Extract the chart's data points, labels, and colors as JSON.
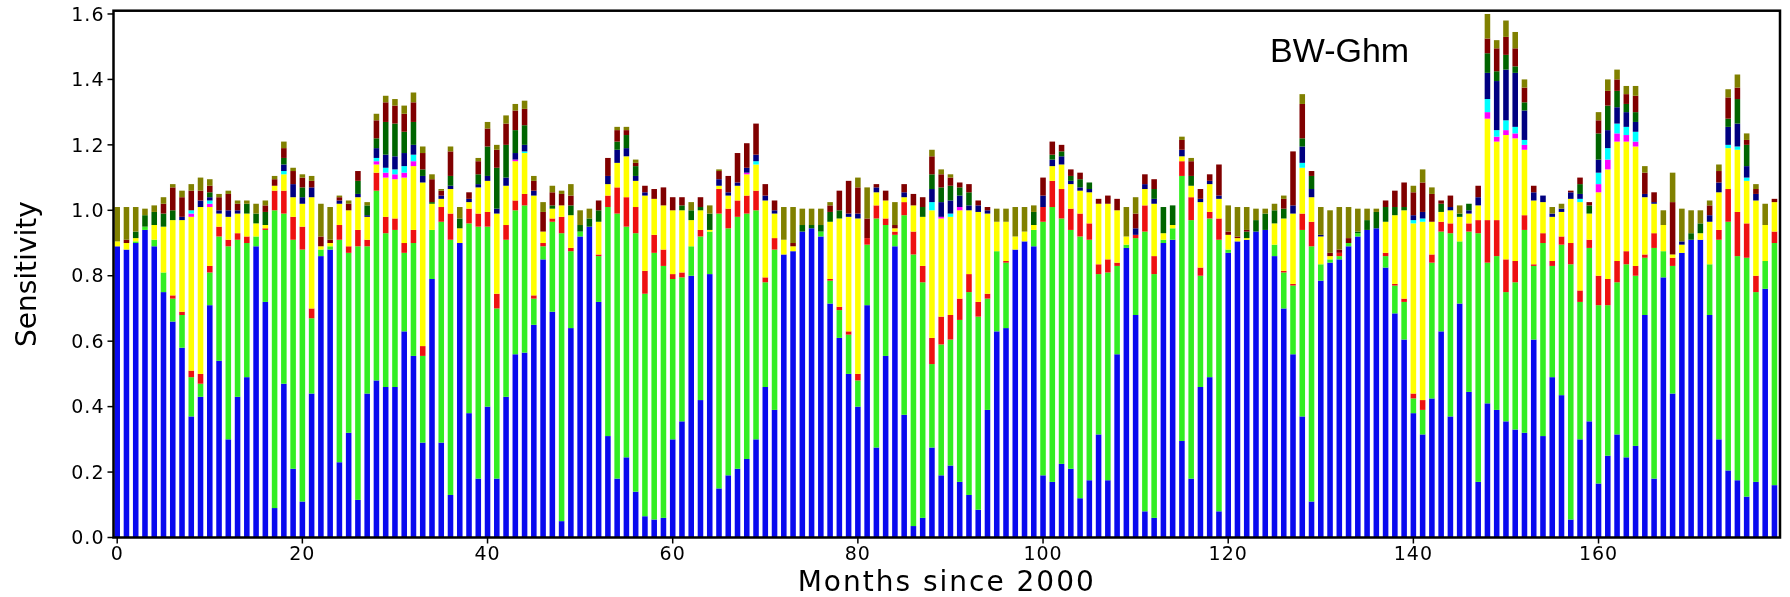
{
  "chart_data": {
    "type": "bar",
    "stacked": true,
    "xlabel": "Months since 2000",
    "ylabel": "Sensitivity",
    "annotations": [
      "BW-Ghm"
    ],
    "xlim": [
      -0.4,
      179.6
    ],
    "ylim": [
      0,
      1.61
    ],
    "xticks": [
      0,
      20,
      40,
      60,
      80,
      100,
      120,
      140,
      160
    ],
    "yticks": [
      {
        "value": 0,
        "label": "0.0"
      },
      {
        "value": 0.2,
        "label": "0.2"
      },
      {
        "value": 0.4,
        "label": "0.4"
      },
      {
        "value": 0.6,
        "label": "0.6"
      },
      {
        "value": 0.8,
        "label": "0.8"
      },
      {
        "value": 1.0,
        "label": "1.0"
      },
      {
        "value": 1.2,
        "label": "1.2"
      },
      {
        "value": 1.4,
        "label": "1.4"
      },
      {
        "value": 1.6,
        "label": "1.6"
      }
    ],
    "x": [
      0,
      1,
      2,
      3,
      4,
      5,
      6,
      7,
      8,
      9,
      10,
      11,
      12,
      13,
      14,
      15,
      16,
      17,
      18,
      19,
      20,
      21,
      22,
      23,
      24,
      25,
      26,
      27,
      28,
      29,
      30,
      31,
      32,
      33,
      34,
      35,
      36,
      37,
      38,
      39,
      40,
      41,
      42,
      43,
      44,
      45,
      46,
      47,
      48,
      49,
      50,
      51,
      52,
      53,
      54,
      55,
      56,
      57,
      58,
      59,
      60,
      61,
      62,
      63,
      64,
      65,
      66,
      67,
      68,
      69,
      70,
      71,
      72,
      73,
      74,
      75,
      76,
      77,
      78,
      79,
      80,
      81,
      82,
      83,
      84,
      85,
      86,
      87,
      88,
      89,
      90,
      91,
      92,
      93,
      94,
      95,
      96,
      97,
      98,
      99,
      100,
      101,
      102,
      103,
      104,
      105,
      106,
      107,
      108,
      109,
      110,
      111,
      112,
      113,
      114,
      115,
      116,
      117,
      118,
      119,
      120,
      121,
      122,
      123,
      124,
      125,
      126,
      127,
      128,
      129,
      130,
      131,
      132,
      133,
      134,
      135,
      136,
      137,
      138,
      139,
      140,
      141,
      142,
      143,
      144,
      145,
      146,
      147,
      148,
      149,
      150,
      151,
      152,
      153,
      154,
      155,
      156,
      157,
      158,
      159,
      160,
      161,
      162,
      163,
      164,
      165,
      166,
      167,
      168,
      169,
      170,
      171,
      172,
      173,
      174,
      175,
      176,
      177,
      178,
      179
    ],
    "series": [
      {
        "color": "#0a0aee",
        "values": [
          0.89,
          0.88,
          0.9,
          0.94,
          0.89,
          0.75,
          0.66,
          0.58,
          0.37,
          0.43,
          0.71,
          0.54,
          0.3,
          0.43,
          0.49,
          0.89,
          0.72,
          0.09,
          0.47,
          0.21,
          0.11,
          0.44,
          0.86,
          0.88,
          0.23,
          0.32,
          0.115,
          0.44,
          0.48,
          0.46,
          0.46,
          0.63,
          0.555,
          0.29,
          0.79,
          0.29,
          0.13,
          0.9,
          0.38,
          0.18,
          0.4,
          0.18,
          0.43,
          0.56,
          0.565,
          0.65,
          0.85,
          0.69,
          0.05,
          0.64,
          0.92,
          0.95,
          0.72,
          0.31,
          0.18,
          0.245,
          0.14,
          0.065,
          0.055,
          0.06,
          0.3,
          0.355,
          0.8,
          0.42,
          0.805,
          0.15,
          0.19,
          0.21,
          0.24,
          0.3,
          0.46,
          0.39,
          0.865,
          0.875,
          0.935,
          0.945,
          0.92,
          0.715,
          0.61,
          0.5,
          0.4,
          0.71,
          0.275,
          0.555,
          0.89,
          0.375,
          0.035,
          0.06,
          0.275,
          0.19,
          0.22,
          0.17,
          0.13,
          0.085,
          0.39,
          0.63,
          0.64,
          0.88,
          0.905,
          0.89,
          0.19,
          0.17,
          0.225,
          0.21,
          0.12,
          0.175,
          0.315,
          0.175,
          0.56,
          0.885,
          0.68,
          0.08,
          0.06,
          0.9,
          0.91,
          0.295,
          0.18,
          0.46,
          0.49,
          0.08,
          0.87,
          0.905,
          0.91,
          0.935,
          0.94,
          0.86,
          0.7,
          0.56,
          0.37,
          0.11,
          0.785,
          0.84,
          0.85,
          0.89,
          0.92,
          0.94,
          0.945,
          0.825,
          0.685,
          0.605,
          0.38,
          0.315,
          0.425,
          0.63,
          0.37,
          0.715,
          0.445,
          0.17,
          0.41,
          0.39,
          0.355,
          0.33,
          0.32,
          0.605,
          0.31,
          0.49,
          0.435,
          0.055,
          0.3,
          0.355,
          0.165,
          0.25,
          0.315,
          0.245,
          0.28,
          0.68,
          0.18,
          0.795,
          0.44,
          0.87,
          0.91,
          0.91,
          0.68,
          0.3,
          0.205,
          0.175,
          0.125,
          0.17,
          0.76,
          0.16
        ]
      },
      {
        "color": "#33ee22",
        "values": [
          0,
          0,
          0.005,
          0.01,
          0.02,
          0.06,
          0.07,
          0.1,
          0.12,
          0.04,
          0.1,
          0.38,
          0.59,
          0.48,
          0.41,
          0.03,
          0.22,
          0.91,
          0.52,
          0.7,
          0.77,
          0.23,
          0.02,
          0.01,
          0.68,
          0.55,
          0.775,
          0.45,
          0.58,
          0.47,
          0.48,
          0.24,
          0.345,
          0.265,
          0.15,
          0.675,
          0.78,
          0,
          0.58,
          0.77,
          0.55,
          0.52,
          0.48,
          0.44,
          0.45,
          0.08,
          0.04,
          0.275,
          0.88,
          0.235,
          0.015,
          0,
          0.14,
          0.7,
          0.81,
          0.705,
          0.79,
          0.68,
          0.815,
          0.77,
          0.49,
          0.44,
          0.09,
          0.5,
          0.13,
          0.84,
          0.755,
          0.77,
          0.75,
          0.7,
          0.32,
          0.49,
          0,
          0,
          0,
          0,
          0.015,
          0.07,
          0.085,
          0.12,
          0.08,
          0.185,
          0.7,
          0.4,
          0.035,
          0.61,
          0.83,
          0.72,
          0.255,
          0.4,
          0.385,
          0.495,
          0.62,
          0.59,
          0.34,
          0.245,
          0.2,
          0,
          0,
          0.05,
          0.775,
          0.84,
          0.75,
          0.73,
          0.8,
          0.735,
          0.49,
          0.635,
          0.27,
          0.01,
          0.235,
          0.855,
          0.745,
          0.01,
          0.035,
          0.81,
          0.79,
          0.34,
          0.485,
          0.83,
          0.01,
          0,
          0,
          0,
          0,
          0.035,
          0.11,
          0.21,
          0.57,
          0.78,
          0.05,
          0.01,
          0.01,
          0.01,
          0.01,
          0,
          0,
          0.035,
          0.085,
          0.115,
          0.045,
          0.075,
          0.415,
          0.305,
          0.56,
          0.19,
          0.49,
          0.76,
          0.43,
          0.47,
          0.395,
          0.45,
          0.62,
          0.225,
          0.59,
          0.34,
          0.46,
          0.78,
          0.42,
          0.53,
          0.545,
          0.46,
          0.465,
          0.59,
          0.52,
          0.175,
          0.705,
          0.08,
          0.39,
          0,
          0,
          0,
          0.155,
          0.61,
          0.76,
          0.685,
          0.73,
          0.58,
          0.085,
          0.74
        ]
      },
      {
        "color": "#ee1111",
        "values": [
          0,
          0,
          0,
          0,
          0,
          0,
          0.01,
          0.01,
          0.02,
          0.03,
          0.02,
          0.03,
          0.02,
          0.02,
          0.02,
          0,
          0.005,
          0.06,
          0.07,
          0.07,
          0.07,
          0.03,
          0,
          0,
          0.045,
          0.02,
          0.05,
          0.02,
          0.055,
          0.05,
          0.035,
          0.03,
          0.04,
          0.03,
          0,
          0.045,
          0.08,
          0,
          0.045,
          0.04,
          0.045,
          0.045,
          0.045,
          0.03,
          0.035,
          0.01,
          0.01,
          0.01,
          0.05,
          0.01,
          0,
          0,
          0.005,
          0.035,
          0.08,
          0.09,
          0.08,
          0.07,
          0.055,
          0.05,
          0.015,
          0.015,
          0,
          0.02,
          0,
          0.075,
          0.06,
          0.05,
          0.055,
          0.06,
          0.015,
          0.035,
          0,
          0,
          0,
          0,
          0,
          0.005,
          0.01,
          0.01,
          0.02,
          0.02,
          0.04,
          0.02,
          0.01,
          0.04,
          0.07,
          0.05,
          0.08,
          0.085,
          0.075,
          0.065,
          0.055,
          0.045,
          0.015,
          0,
          0.005,
          0,
          0,
          0,
          0.045,
          0.08,
          0.09,
          0.065,
          0.07,
          0.05,
          0.03,
          0.04,
          0.01,
          0,
          0.01,
          0.08,
          0.055,
          0,
          0,
          0.045,
          0.07,
          0.025,
          0.02,
          0.065,
          0,
          0,
          0,
          0,
          0,
          0,
          0.005,
          0.005,
          0.05,
          0.075,
          0,
          0,
          0.01,
          0,
          0,
          0,
          0,
          0.01,
          0.005,
          0.01,
          0.015,
          0.03,
          0.025,
          0.03,
          0.03,
          0,
          0.025,
          0.04,
          0.13,
          0.11,
          0.1,
          0.065,
          0.045,
          0.005,
          0.03,
          0.015,
          0.025,
          0.065,
          0.035,
          0.025,
          0.09,
          0.08,
          0.065,
          0.04,
          0.03,
          0.01,
          0.045,
          0,
          0.025,
          0,
          0,
          0,
          0,
          0.03,
          0.1,
          0.135,
          0.105,
          0.05,
          0,
          0.035
        ]
      },
      {
        "color": "#ffff00",
        "values": [
          0.015,
          0.02,
          0.01,
          0,
          0.045,
          0.14,
          0.23,
          0.28,
          0.47,
          0.51,
          0.18,
          0.04,
          0.07,
          0.06,
          0.07,
          0.04,
          0.01,
          0.015,
          0.05,
          0.06,
          0.07,
          0.34,
          0.01,
          0.01,
          0.065,
          0.11,
          0.1,
          0.07,
          0.025,
          0.12,
          0.12,
          0.2,
          0.195,
          0.5,
          0.08,
          0.025,
          0.075,
          0.045,
          0.02,
          0.08,
          0.095,
          0.245,
          0.12,
          0.12,
          0.125,
          0.305,
          0.035,
          0.03,
          0.035,
          0.1,
          0,
          0,
          0.1,
          0.035,
          0.075,
          0.125,
          0.08,
          0.23,
          0.11,
          0.135,
          0.195,
          0.19,
          0.08,
          0.06,
          0.005,
          0.01,
          0.04,
          0.045,
          0.065,
          0.08,
          0.235,
          0.075,
          0.045,
          0.015,
          0,
          0,
          0,
          0.175,
          0.27,
          0.35,
          0.475,
          0,
          0.04,
          0.055,
          0.01,
          0.015,
          0.08,
          0.15,
          0.39,
          0.3,
          0.3,
          0.27,
          0.195,
          0.275,
          0.245,
          0.09,
          0.12,
          0.04,
          0.03,
          0.015,
          0,
          0.045,
          0.075,
          0.075,
          0.07,
          0.095,
          0.185,
          0.17,
          0.16,
          0.025,
          0,
          0.05,
          0.16,
          0.02,
          0.01,
          0.015,
          0.035,
          0.2,
          0.085,
          0.06,
          0.045,
          0.01,
          0.005,
          0,
          0,
          0.065,
          0.16,
          0.215,
          0.14,
          0.075,
          0.085,
          0.01,
          0,
          0,
          0,
          0,
          0,
          0.095,
          0.21,
          0.27,
          0.52,
          0.545,
          0.1,
          0.03,
          0.04,
          0.075,
          0.03,
          0.045,
          0.31,
          0.24,
          0.38,
          0.375,
          0.2,
          0.195,
          0.095,
          0.135,
          0.075,
          0.135,
          0.27,
          0.08,
          0.255,
          0.335,
          0.365,
          0.335,
          0.365,
          0.175,
          0.09,
          0.08,
          0.01,
          0.025,
          0,
          0.02,
          0.13,
          0.115,
          0.125,
          0.19,
          0.13,
          0.23,
          0.11,
          0.09
        ]
      },
      {
        "color": "#ff00ff",
        "values": [
          0,
          0,
          0,
          0,
          0,
          0,
          0,
          0,
          0.01,
          0,
          0.01,
          0,
          0,
          0,
          0,
          0,
          0,
          0,
          0,
          0,
          0,
          0,
          0,
          0,
          0,
          0,
          0,
          0,
          0.01,
          0.015,
          0.015,
          0.015,
          0.015,
          0,
          0,
          0,
          0,
          0,
          0,
          0,
          0,
          0,
          0,
          0.005,
          0,
          0,
          0,
          0,
          0,
          0,
          0,
          0,
          0,
          0,
          0,
          0,
          0,
          0,
          0,
          0,
          0,
          0,
          0,
          0,
          0,
          0,
          0,
          0,
          0.005,
          0,
          0,
          0,
          0,
          0,
          0,
          0,
          0,
          0,
          0,
          0,
          0,
          0,
          0,
          0,
          0,
          0,
          0,
          0,
          0,
          0.005,
          0,
          0.01,
          0,
          0,
          0,
          0,
          0,
          0,
          0,
          0,
          0,
          0,
          0,
          0,
          0,
          0,
          0,
          0,
          0,
          0,
          0,
          0,
          0,
          0,
          0,
          0,
          0,
          0,
          0,
          0,
          0,
          0,
          0,
          0,
          0,
          0,
          0,
          0,
          0,
          0,
          0,
          0,
          0,
          0,
          0,
          0,
          0,
          0,
          0,
          0,
          0,
          0,
          0,
          0,
          0,
          0,
          0,
          0,
          0.02,
          0.015,
          0.015,
          0.015,
          0.015,
          0,
          0,
          0,
          0,
          0,
          0,
          0,
          0.025,
          0.03,
          0.025,
          0.02,
          0.015,
          0,
          0,
          0,
          0,
          0,
          0,
          0,
          0,
          0,
          0,
          0,
          0,
          0,
          0,
          0
        ]
      },
      {
        "color": "#00ffff",
        "values": [
          0,
          0,
          0,
          0,
          0,
          0,
          0,
          0,
          0.01,
          0,
          0.01,
          0,
          0,
          0,
          0,
          0,
          0,
          0,
          0.01,
          0,
          0,
          0,
          0,
          0,
          0,
          0,
          0,
          0,
          0.01,
          0.015,
          0.015,
          0.02,
          0.02,
          0,
          0,
          0,
          0,
          0,
          0,
          0,
          0,
          0,
          0,
          0,
          0.005,
          0,
          0,
          0,
          0,
          0,
          0,
          0,
          0,
          0,
          0,
          0,
          0,
          0,
          0,
          0,
          0,
          0,
          0,
          0,
          0,
          0,
          0,
          0,
          0,
          0.01,
          0,
          0,
          0,
          0,
          0,
          0,
          0,
          0,
          0,
          0,
          0,
          0,
          0,
          0,
          0,
          0,
          0,
          0,
          0.025,
          0,
          0.01,
          0,
          0,
          0,
          0,
          0,
          0,
          0,
          0,
          0,
          0,
          0,
          0,
          0,
          0,
          0,
          0,
          0,
          0,
          0,
          0,
          0,
          0,
          0,
          0,
          0,
          0,
          0,
          0,
          0,
          0,
          0,
          0,
          0,
          0,
          0,
          0,
          0,
          0.015,
          0,
          0,
          0,
          0,
          0,
          0,
          0,
          0,
          0,
          0,
          0,
          0.01,
          0.01,
          0,
          0,
          0,
          0,
          0,
          0,
          0.04,
          0.02,
          0.03,
          0.02,
          0.015,
          0,
          0,
          0,
          0,
          0,
          0.01,
          0,
          0.035,
          0.035,
          0.03,
          0.025,
          0.03,
          0,
          0,
          0,
          0,
          0,
          0,
          0,
          0,
          0,
          0.01,
          0.01,
          0.01,
          0,
          0,
          0
        ]
      },
      {
        "color": "#000080",
        "values": [
          0,
          0,
          0,
          0,
          0,
          0,
          0,
          0.01,
          0,
          0.02,
          0.01,
          0.01,
          0.02,
          0.01,
          0,
          0,
          0,
          0,
          0.02,
          0.04,
          0.02,
          0.03,
          0,
          0,
          0.01,
          0,
          0.01,
          0.005,
          0.03,
          0.04,
          0.04,
          0.04,
          0.03,
          0.02,
          0,
          0.01,
          0.01,
          0,
          0.01,
          0.01,
          0.015,
          0.015,
          0.025,
          0.02,
          0.02,
          0.015,
          0,
          0,
          0,
          0,
          0,
          0,
          0,
          0.025,
          0.04,
          0.025,
          0.015,
          0.01,
          0,
          0,
          0,
          0,
          0,
          0,
          0,
          0.02,
          0.01,
          0.01,
          0.015,
          0.02,
          0.015,
          0.01,
          0,
          0,
          0,
          0,
          0,
          0,
          0,
          0.01,
          0.015,
          0,
          0.015,
          0,
          0,
          0.015,
          0,
          0,
          0.04,
          0.045,
          0.04,
          0.035,
          0.015,
          0.02,
          0.01,
          0,
          0,
          0,
          0,
          0,
          0.035,
          0.02,
          0.025,
          0.01,
          0.01,
          0.01,
          0,
          0,
          0,
          0,
          0.02,
          0.015,
          0.015,
          0,
          0,
          0.02,
          0,
          0.01,
          0.01,
          0.01,
          0,
          0,
          0,
          0,
          0,
          0,
          0,
          0.025,
          0.05,
          0.025,
          0.005,
          0,
          0,
          0,
          0,
          0,
          0,
          0,
          0,
          0,
          0.015,
          0.02,
          0,
          0,
          0.01,
          0,
          0.01,
          0.025,
          0.08,
          0.15,
          0.155,
          0.165,
          0.09,
          0.025,
          0.02,
          0.01,
          0.01,
          0.02,
          0.015,
          0,
          0.04,
          0.055,
          0.05,
          0.045,
          0.03,
          0.01,
          0.005,
          0,
          0,
          0.01,
          0,
          0,
          0.02,
          0.03,
          0.055,
          0.07,
          0.035,
          0.02,
          0,
          0
        ]
      },
      {
        "color": "#006400",
        "values": [
          0,
          0,
          0.02,
          0.035,
          0.04,
          0.04,
          0.03,
          0,
          0,
          0,
          0.015,
          0,
          0,
          0,
          0.03,
          0.03,
          0.04,
          0,
          0.02,
          0,
          0.03,
          0,
          0,
          0,
          0,
          0,
          0.04,
          0.03,
          0.03,
          0.1,
          0.1,
          0.065,
          0.07,
          0.02,
          0.005,
          0,
          0.03,
          0.03,
          0,
          0.03,
          0.09,
          0.125,
          0.1,
          0.07,
          0.06,
          0,
          0,
          0.01,
          0,
          0.03,
          0.02,
          0.025,
          0.035,
          0,
          0.025,
          0.04,
          0.03,
          0,
          0,
          0,
          0,
          0.015,
          0.03,
          0.01,
          0.05,
          0,
          0,
          0,
          0,
          0,
          0,
          0,
          0,
          0,
          0.02,
          0.01,
          0.02,
          0.03,
          0.025,
          0,
          0,
          0,
          0,
          0,
          0,
          0,
          0,
          0.03,
          0.045,
          0.045,
          0.045,
          0.025,
          0.04,
          0,
          0,
          0,
          0,
          0,
          0,
          0.04,
          0,
          0.015,
          0.015,
          0.015,
          0.025,
          0.02,
          0,
          0,
          0,
          0,
          0,
          0,
          0.03,
          0.08,
          0.06,
          0,
          0.03,
          0,
          0,
          0,
          0,
          0,
          0.02,
          0.035,
          0.05,
          0.04,
          0.03,
          0,
          0.025,
          0.04,
          0,
          0,
          0,
          0,
          0.005,
          0.03,
          0.05,
          0.045,
          0.025,
          0.01,
          0,
          0,
          0,
          0.025,
          0,
          0.01,
          0.02,
          0,
          0.06,
          0.03,
          0.045,
          0.02,
          0.025,
          0,
          0,
          0,
          0,
          0,
          0.03,
          0.025,
          0.08,
          0.075,
          0.05,
          0.025,
          0.03,
          0,
          0,
          0,
          0,
          0,
          0.02,
          0.03,
          0,
          0,
          0.025,
          0.075,
          0.065,
          0,
          0,
          0
        ]
      },
      {
        "color": "#800000",
        "values": [
          0,
          0.01,
          0,
          0,
          0,
          0.03,
          0.07,
          0.06,
          0.06,
          0.03,
          0.02,
          0.04,
          0.05,
          0.02,
          0,
          0,
          0.02,
          0.02,
          0.03,
          0.04,
          0.03,
          0.02,
          0.03,
          0.01,
          0.01,
          0.02,
          0.03,
          0,
          0.055,
          0.06,
          0.055,
          0.055,
          0.06,
          0.05,
          0.07,
          0.015,
          0.075,
          0,
          0.02,
          0.04,
          0.055,
          0.055,
          0.065,
          0.06,
          0.05,
          0.03,
          0.06,
          0.04,
          0.035,
          0.03,
          0,
          0,
          0.03,
          0.055,
          0.035,
          0.015,
          0.01,
          0.02,
          0.03,
          0.055,
          0.04,
          0.025,
          0,
          0.03,
          0,
          0.025,
          0.05,
          0.09,
          0.075,
          0.095,
          0.035,
          0.03,
          0,
          0.01,
          0,
          0,
          0,
          0.02,
          0.06,
          0.1,
          0.08,
          0.06,
          0.01,
          0.03,
          0.01,
          0.025,
          0.035,
          0.03,
          0.055,
          0.04,
          0.025,
          0.015,
          0.025,
          0.015,
          0.01,
          0,
          0,
          0,
          0,
          0,
          0.055,
          0.04,
          0.02,
          0.02,
          0.02,
          0,
          0.015,
          0.025,
          0.035,
          0,
          0.045,
          0.03,
          0.03,
          0,
          0,
          0.03,
          0.045,
          0.03,
          0.02,
          0.095,
          0.01,
          0.005,
          0.005,
          0,
          0,
          0,
          0.03,
          0.165,
          0.105,
          0.015,
          0,
          0.01,
          0.01,
          0.015,
          0,
          0,
          0,
          0.02,
          0.05,
          0.075,
          0.07,
          0.09,
          0.085,
          0.01,
          0.035,
          0,
          0,
          0.035,
          0.045,
          0.07,
          0.055,
          0.055,
          0.045,
          0.02,
          0,
          0,
          0,
          0.005,
          0.02,
          0.01,
          0.04,
          0.045,
          0.035,
          0.03,
          0.05,
          0.065,
          0.03,
          0,
          0.16,
          0,
          0,
          0,
          0.03,
          0.035,
          0.065,
          0.035,
          0.015,
          0.015,
          0,
          0.01
        ]
      },
      {
        "color": "#808000",
        "values": [
          0.105,
          0.1,
          0.075,
          0.02,
          0.02,
          0.02,
          0.01,
          0.02,
          0.02,
          0.04,
          0.02,
          0.01,
          0.01,
          0.01,
          0.01,
          0.03,
          0.015,
          0.01,
          0.02,
          0.01,
          0.01,
          0.015,
          0.1,
          0.1,
          0.005,
          0.01,
          0,
          0.01,
          0.02,
          0.02,
          0.02,
          0.025,
          0.03,
          0.02,
          0.015,
          0.005,
          0.015,
          0.035,
          0,
          0.01,
          0.02,
          0.015,
          0.025,
          0.02,
          0.025,
          0.015,
          0.03,
          0.02,
          0.01,
          0.035,
          0.045,
          0.03,
          0,
          0,
          0.01,
          0.01,
          0.01,
          0,
          0,
          0,
          0,
          0,
          0.025,
          0,
          0.025,
          0.005,
          0,
          0,
          0,
          0,
          0,
          0,
          0.1,
          0.11,
          0.05,
          0.05,
          0.05,
          0.01,
          0,
          0,
          0.03,
          0.095,
          0,
          0,
          0.07,
          0,
          0,
          0,
          0.02,
          0.015,
          0.01,
          0,
          0,
          0,
          0,
          0.04,
          0.04,
          0.09,
          0.075,
          0.02,
          0,
          0,
          0,
          0,
          0,
          0,
          0,
          0,
          0,
          0.09,
          0.05,
          0,
          0,
          0,
          0,
          0.01,
          0.01,
          0,
          0,
          0,
          0.08,
          0.09,
          0.07,
          0.035,
          0.015,
          0.02,
          0.01,
          0,
          0.03,
          0,
          0.085,
          0.13,
          0.13,
          0.095,
          0.07,
          0.035,
          0.01,
          0,
          0,
          0,
          0.02,
          0.04,
          0.02,
          0,
          0,
          0.025,
          0,
          0,
          0.075,
          0.025,
          0.05,
          0.05,
          0.025,
          0,
          0,
          0.02,
          0.015,
          0,
          0,
          0,
          0.025,
          0.035,
          0.03,
          0.025,
          0.03,
          0.02,
          0,
          0.045,
          0.09,
          0.1,
          0.07,
          0.04,
          0.015,
          0.02,
          0.025,
          0.04,
          0.02,
          0.015,
          0.065,
          0
        ]
      }
    ]
  }
}
